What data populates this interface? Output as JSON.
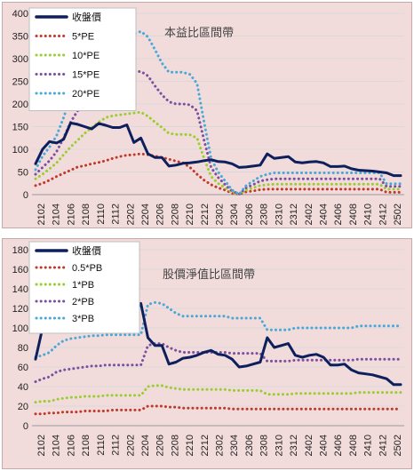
{
  "chart_data": [
    {
      "type": "line",
      "title": "本益比區間帶",
      "ylim": [
        0,
        400
      ],
      "yticks": [
        0,
        50,
        100,
        150,
        200,
        250,
        300,
        350,
        400
      ],
      "x_tick_labels": [
        "2102",
        "2104",
        "2106",
        "2108",
        "2110",
        "2112",
        "2202",
        "2204",
        "2206",
        "2208",
        "2210",
        "2212",
        "2302",
        "2304",
        "2306",
        "2308",
        "2310",
        "2312",
        "2402",
        "2404",
        "2406",
        "2408",
        "2410",
        "2412",
        "2502"
      ],
      "grid": "horizontal",
      "legend_position": "top-left",
      "series": [
        {
          "name": "收盤價",
          "color": "#0d1f5c",
          "style": "solid",
          "values": [
            68,
            100,
            117,
            114,
            122,
            158,
            155,
            150,
            145,
            157,
            153,
            148,
            148,
            154,
            115,
            125,
            90,
            82,
            82,
            63,
            65,
            69,
            70,
            72,
            75,
            77,
            73,
            72,
            68,
            60,
            61,
            63,
            65,
            90,
            80,
            82,
            84,
            72,
            70,
            72,
            73,
            70,
            62,
            62,
            63,
            57,
            54,
            53,
            52,
            50,
            48,
            42,
            42
          ]
        },
        {
          "name": "5*PE",
          "color": "#c0392b",
          "style": "dotted",
          "values": [
            20,
            25,
            32,
            40,
            47,
            54,
            61,
            64,
            68,
            71,
            75,
            80,
            84,
            87,
            88,
            90,
            88,
            85,
            82,
            78,
            74,
            70,
            60,
            45,
            32,
            22,
            15,
            10,
            3,
            1,
            6,
            8,
            11,
            12,
            12,
            12,
            12,
            12,
            12,
            12,
            12,
            12,
            12,
            12,
            12,
            12,
            12,
            12,
            12,
            12,
            5,
            5,
            5
          ]
        },
        {
          "name": "10*PE",
          "color": "#9acd32",
          "style": "dotted",
          "values": [
            35,
            45,
            57,
            70,
            88,
            105,
            120,
            135,
            148,
            160,
            170,
            174,
            176,
            178,
            180,
            182,
            173,
            160,
            148,
            135,
            133,
            133,
            132,
            125,
            80,
            40,
            25,
            15,
            5,
            1,
            10,
            15,
            20,
            22,
            23,
            23,
            23,
            23,
            23,
            23,
            23,
            23,
            23,
            23,
            23,
            23,
            23,
            23,
            23,
            23,
            12,
            12,
            12
          ]
        },
        {
          "name": "15*PE",
          "color": "#7b4fa0",
          "style": "dotted",
          "values": [
            45,
            60,
            75,
            95,
            125,
            160,
            185,
            205,
            220,
            240,
            255,
            262,
            265,
            268,
            270,
            272,
            262,
            240,
            220,
            205,
            200,
            200,
            198,
            185,
            120,
            60,
            38,
            22,
            8,
            1,
            15,
            22,
            30,
            33,
            35,
            35,
            35,
            35,
            35,
            35,
            35,
            35,
            35,
            35,
            35,
            35,
            35,
            35,
            35,
            35,
            18,
            18,
            18
          ]
        },
        {
          "name": "20*PE",
          "color": "#4aa8d8",
          "style": "dotted",
          "values": [
            55,
            85,
            105,
            130,
            170,
            215,
            250,
            275,
            300,
            315,
            330,
            340,
            345,
            350,
            355,
            360,
            348,
            320,
            290,
            270,
            270,
            270,
            265,
            245,
            160,
            80,
            50,
            30,
            10,
            1,
            20,
            30,
            40,
            45,
            48,
            48,
            48,
            48,
            48,
            48,
            48,
            48,
            48,
            48,
            48,
            48,
            48,
            48,
            48,
            48,
            24,
            24,
            24
          ]
        }
      ]
    },
    {
      "type": "line",
      "title": "股價淨值比區間帶",
      "ylim": [
        0,
        180
      ],
      "yticks": [
        0,
        20,
        40,
        60,
        80,
        100,
        120,
        140,
        160,
        180
      ],
      "x_tick_labels": [
        "2102",
        "2104",
        "2106",
        "2108",
        "2110",
        "2112",
        "2202",
        "2204",
        "2206",
        "2208",
        "2210",
        "2212",
        "2302",
        "2304",
        "2306",
        "2308",
        "2310",
        "2312",
        "2402",
        "2404",
        "2406",
        "2408",
        "2410",
        "2412",
        "2502"
      ],
      "grid": "horizontal",
      "legend_position": "top-left",
      "series": [
        {
          "name": "收盤價",
          "color": "#0d1f5c",
          "style": "solid",
          "values": [
            68,
            100,
            117,
            114,
            122,
            158,
            155,
            150,
            145,
            157,
            153,
            148,
            148,
            154,
            115,
            125,
            90,
            82,
            82,
            63,
            65,
            69,
            70,
            72,
            75,
            77,
            73,
            72,
            68,
            60,
            61,
            63,
            65,
            90,
            80,
            82,
            84,
            72,
            70,
            72,
            73,
            70,
            62,
            62,
            63,
            57,
            54,
            53,
            52,
            50,
            48,
            42,
            42
          ]
        },
        {
          "name": "0.5*PB",
          "color": "#c0392b",
          "style": "dotted",
          "values": [
            12,
            12,
            13,
            13,
            14,
            14,
            14,
            15,
            15,
            15,
            15,
            16,
            16,
            16,
            16,
            16,
            20,
            20,
            20,
            19,
            19,
            18,
            18,
            18,
            18,
            18,
            18,
            18,
            17,
            17,
            17,
            17,
            17,
            17,
            17,
            17,
            17,
            17,
            17,
            17,
            17,
            17,
            17,
            17,
            17,
            17,
            17,
            17,
            17,
            17,
            17,
            17,
            17
          ]
        },
        {
          "name": "1*PB",
          "color": "#9acd32",
          "style": "dotted",
          "values": [
            24,
            25,
            25,
            27,
            28,
            29,
            29,
            30,
            30,
            30,
            31,
            31,
            31,
            31,
            31,
            31,
            40,
            41,
            41,
            39,
            38,
            37,
            37,
            37,
            37,
            37,
            37,
            37,
            36,
            36,
            36,
            36,
            36,
            32,
            32,
            32,
            32,
            33,
            33,
            33,
            33,
            33,
            33,
            33,
            33,
            33,
            34,
            34,
            34,
            34,
            34,
            34,
            34
          ]
        },
        {
          "name": "2*PB",
          "color": "#7b4fa0",
          "style": "dotted",
          "values": [
            45,
            48,
            50,
            55,
            57,
            58,
            59,
            60,
            61,
            61,
            62,
            62,
            62,
            62,
            62,
            62,
            82,
            84,
            84,
            80,
            77,
            75,
            75,
            75,
            75,
            75,
            75,
            75,
            74,
            74,
            74,
            74,
            74,
            66,
            66,
            66,
            66,
            67,
            67,
            67,
            67,
            67,
            67,
            67,
            67,
            67,
            68,
            68,
            68,
            68,
            68,
            68,
            68
          ]
        },
        {
          "name": "3*PB",
          "color": "#4aa8d8",
          "style": "dotted",
          "values": [
            70,
            72,
            75,
            82,
            87,
            89,
            90,
            91,
            92,
            92,
            93,
            93,
            93,
            93,
            93,
            93,
            124,
            126,
            125,
            120,
            115,
            112,
            112,
            112,
            112,
            112,
            112,
            112,
            110,
            110,
            110,
            110,
            110,
            98,
            98,
            98,
            98,
            100,
            100,
            100,
            100,
            100,
            100,
            100,
            100,
            100,
            102,
            102,
            102,
            102,
            102,
            102,
            102
          ]
        }
      ]
    }
  ]
}
